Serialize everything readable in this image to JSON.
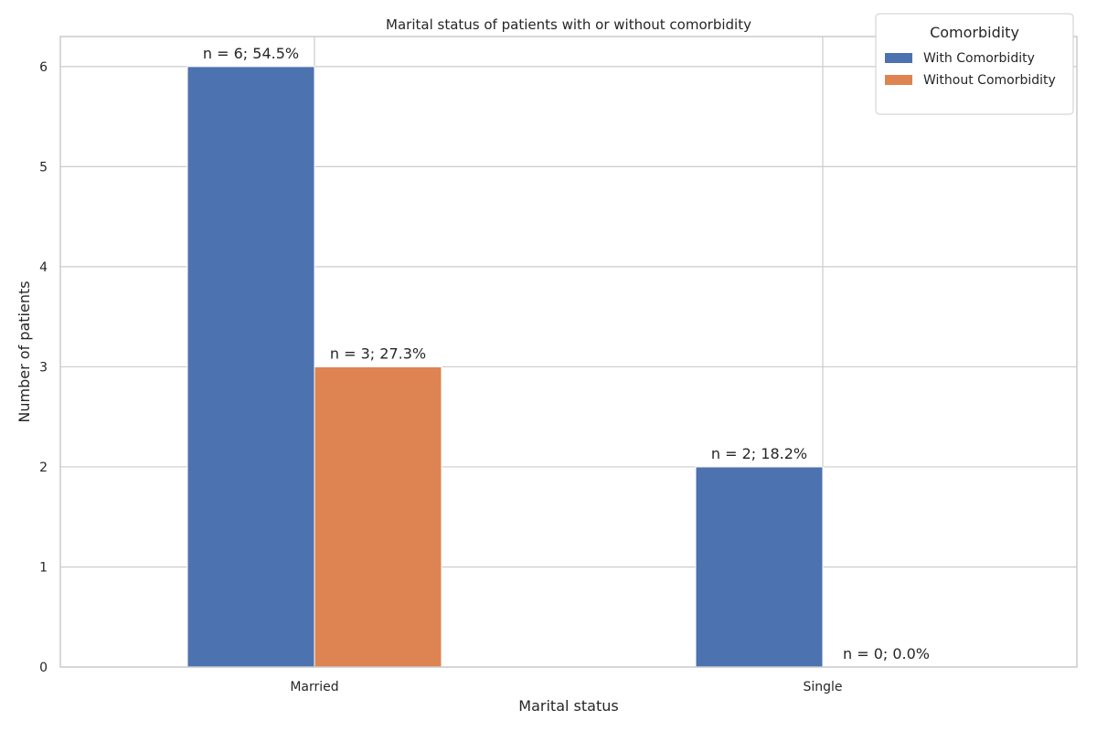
{
  "chart_data": {
    "type": "bar",
    "title": "Marital status of patients with or without comorbidity",
    "xlabel": "Marital status",
    "ylabel": "Number of patients",
    "categories": [
      "Married",
      "Single"
    ],
    "series": [
      {
        "name": "With Comorbidity",
        "color": "#4c72b0",
        "values": [
          6,
          2
        ],
        "labels": [
          "n = 6; 54.5%",
          "n = 2; 18.2%"
        ]
      },
      {
        "name": "Without Comorbidity",
        "color": "#dd8452",
        "values": [
          3,
          0
        ],
        "labels": [
          "n = 3; 27.3%",
          "n = 0; 0.0%"
        ]
      }
    ],
    "ylim": [
      0,
      6.3
    ],
    "yticks": [
      "0",
      "1",
      "2",
      "3",
      "4",
      "5",
      "6"
    ],
    "grid": true,
    "legend": {
      "title": "Comorbidity",
      "position": "top-right"
    }
  }
}
